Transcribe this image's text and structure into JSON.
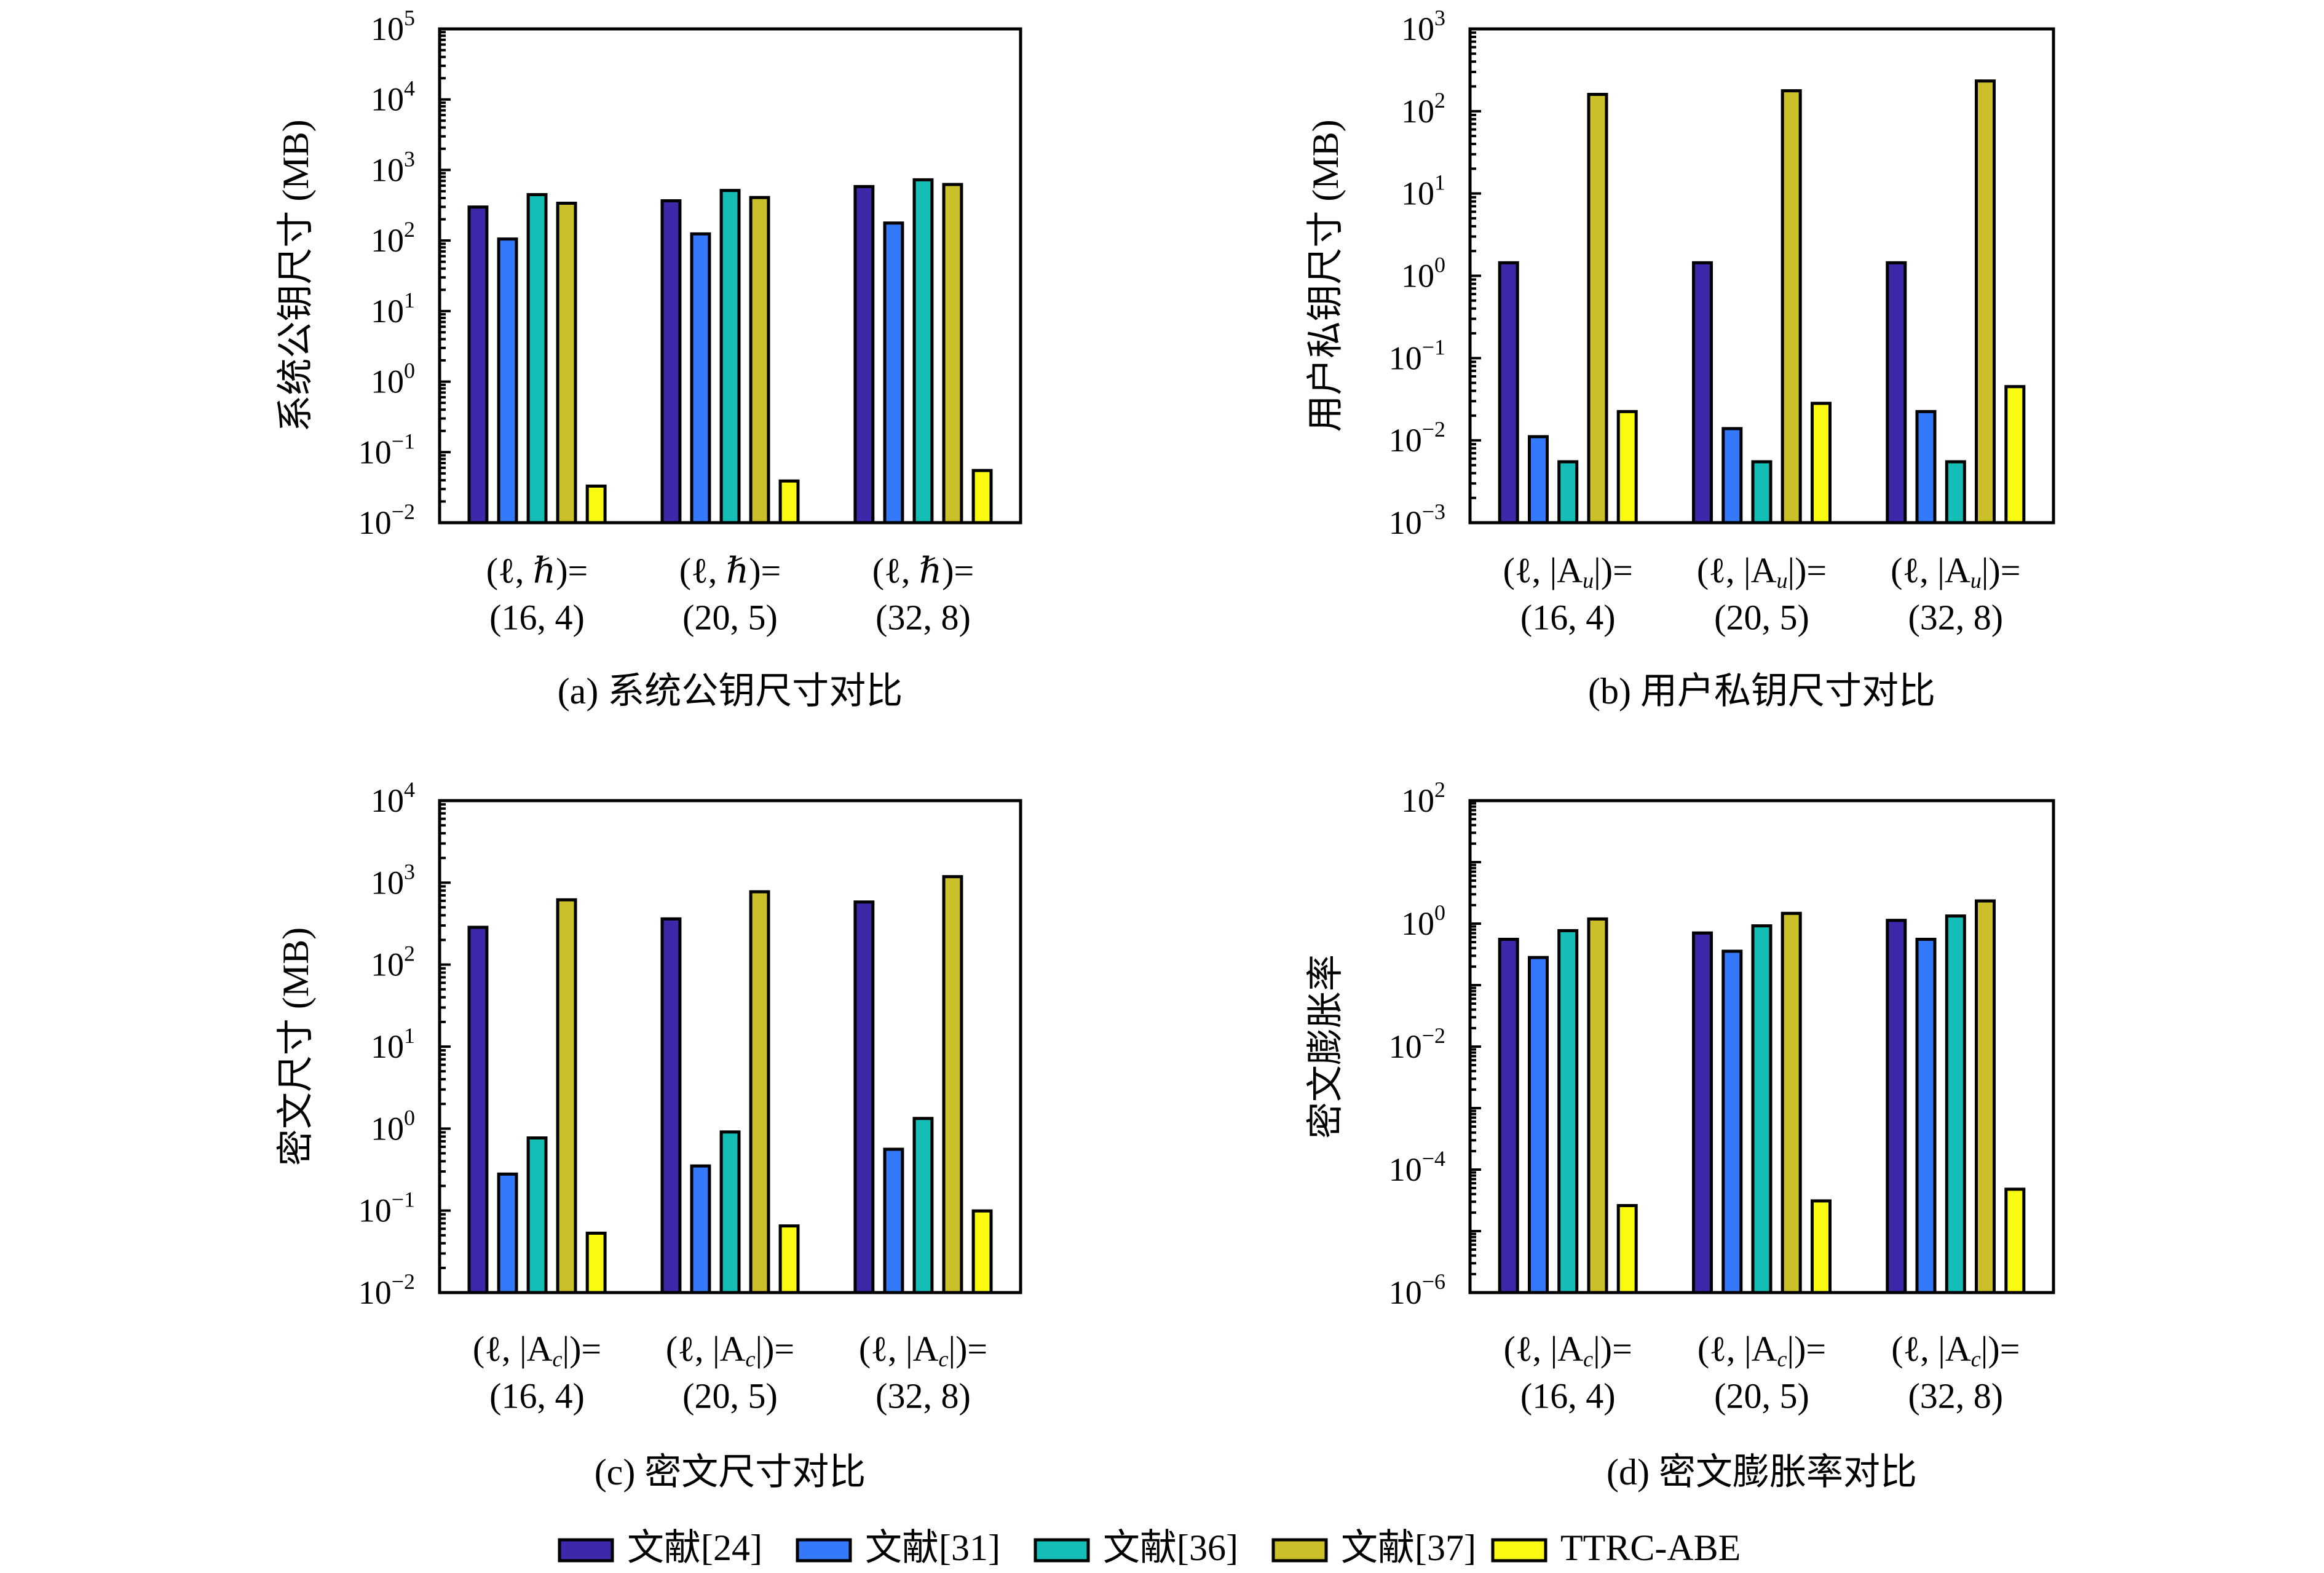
{
  "figure": {
    "legend": [
      {
        "label": "文献[24]",
        "color": "#3C28A8"
      },
      {
        "label": "文献[31]",
        "color": "#3479F9"
      },
      {
        "label": "文献[36]",
        "color": "#14BDB5"
      },
      {
        "label": "文献[37]",
        "color": "#CBC02A"
      },
      {
        "label": "TTRC-ABE",
        "color": "#F9F911"
      }
    ]
  },
  "chart_data": [
    {
      "id": "a",
      "type": "bar",
      "yscale": "log",
      "title": "(a) 系统公钥尺寸对比",
      "ylabel": "系统公钥尺寸 (MB)",
      "xlabel": "",
      "ylim": [
        0.01,
        100000
      ],
      "ytick_exponents": [
        -2,
        -1,
        0,
        1,
        2,
        3,
        4,
        5
      ],
      "categories": [
        {
          "line1": "(ℓ, ℏ)=",
          "line2": "(16, 4)"
        },
        {
          "line1": "(ℓ, ℏ)=",
          "line2": "(20, 5)"
        },
        {
          "line1": "(ℓ, ℏ)=",
          "line2": "(32, 8)"
        }
      ],
      "series": [
        {
          "name": "文献[24]",
          "values": [
            298,
            366,
            582
          ]
        },
        {
          "name": "文献[31]",
          "values": [
            105,
            124,
            177
          ]
        },
        {
          "name": "文献[36]",
          "values": [
            447,
            513,
            725
          ]
        },
        {
          "name": "文献[37]",
          "values": [
            338,
            407,
            623
          ]
        },
        {
          "name": "TTRC-ABE",
          "values": [
            0.033,
            0.039,
            0.055
          ]
        }
      ]
    },
    {
      "id": "b",
      "type": "bar",
      "yscale": "log",
      "title": "(b) 用户私钥尺寸对比",
      "ylabel": "用户私钥尺寸 (MB)",
      "xlabel": "",
      "ylim": [
        0.001,
        1000
      ],
      "ytick_exponents": [
        -3,
        -2,
        -1,
        0,
        1,
        2,
        3
      ],
      "categories": [
        {
          "line1": "(ℓ, |A",
          "sub": "u",
          "line1_end": "|)=",
          "line2": "(16, 4)"
        },
        {
          "line1": "(ℓ, |A",
          "sub": "u",
          "line1_end": "|)=",
          "line2": "(20, 5)"
        },
        {
          "line1": "(ℓ, |A",
          "sub": "u",
          "line1_end": "|)=",
          "line2": "(32, 8)"
        }
      ],
      "series": [
        {
          "name": "文献[24]",
          "values": [
            1.44,
            1.44,
            1.44
          ]
        },
        {
          "name": "文献[31]",
          "values": [
            0.0111,
            0.0139,
            0.0224
          ]
        },
        {
          "name": "文献[36]",
          "values": [
            0.0055,
            0.0055,
            0.0055
          ]
        },
        {
          "name": "文献[37]",
          "values": [
            160,
            177,
            233
          ]
        },
        {
          "name": "TTRC-ABE",
          "values": [
            0.0224,
            0.0282,
            0.045
          ]
        }
      ]
    },
    {
      "id": "c",
      "type": "bar",
      "yscale": "log",
      "title": "(c) 密文尺寸对比",
      "ylabel": "密文尺寸 (MB)",
      "xlabel": "",
      "ylim": [
        0.01,
        10000
      ],
      "ytick_exponents": [
        -2,
        -1,
        0,
        1,
        2,
        3,
        4
      ],
      "categories": [
        {
          "line1": "(ℓ, |A",
          "sub": "c",
          "line1_end": "|)=",
          "line2": "(16, 4)"
        },
        {
          "line1": "(ℓ, |A",
          "sub": "c",
          "line1_end": "|)=",
          "line2": "(20, 5)"
        },
        {
          "line1": "(ℓ, |A",
          "sub": "c",
          "line1_end": "|)=",
          "line2": "(32, 8)"
        }
      ],
      "series": [
        {
          "name": "文献[24]",
          "values": [
            285,
            361,
            581
          ]
        },
        {
          "name": "文献[31]",
          "values": [
            0.279,
            0.35,
            0.56
          ]
        },
        {
          "name": "文献[36]",
          "values": [
            0.77,
            0.91,
            1.33
          ]
        },
        {
          "name": "文献[37]",
          "values": [
            617,
            773,
            1183
          ]
        },
        {
          "name": "TTRC-ABE",
          "values": [
            0.053,
            0.065,
            0.099
          ]
        }
      ]
    },
    {
      "id": "d",
      "type": "bar",
      "yscale": "log",
      "title": "(d) 密文膨胀率对比",
      "ylabel": "密文膨胀率",
      "xlabel": "",
      "ylim": [
        1e-06,
        100
      ],
      "ytick_exponents": [
        -6,
        -4,
        -2,
        0,
        2
      ],
      "categories": [
        {
          "line1": "(ℓ, |A",
          "sub": "c",
          "line1_end": "|)=",
          "line2": "(16, 4)"
        },
        {
          "line1": "(ℓ, |A",
          "sub": "c",
          "line1_end": "|)=",
          "line2": "(20, 5)"
        },
        {
          "line1": "(ℓ, |A",
          "sub": "c",
          "line1_end": "|)=",
          "line2": "(32, 8)"
        }
      ],
      "series": [
        {
          "name": "文献[24]",
          "values": [
            0.556,
            0.705,
            1.13
          ]
        },
        {
          "name": "文献[31]",
          "values": [
            0.281,
            0.356,
            0.556
          ]
        },
        {
          "name": "文献[36]",
          "values": [
            0.77,
            0.92,
            1.33
          ]
        },
        {
          "name": "文献[37]",
          "values": [
            1.19,
            1.47,
            2.34
          ]
        },
        {
          "name": "TTRC-ABE",
          "values": [
            2.6e-05,
            3.1e-05,
            4.8e-05
          ]
        }
      ]
    }
  ]
}
